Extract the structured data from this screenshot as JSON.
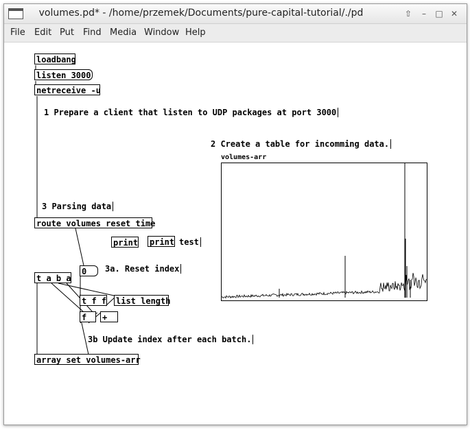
{
  "window": {
    "title": "volumes.pd* - /home/przemek/Documents/pure-capital-tutorial/./pd"
  },
  "menu": [
    "File",
    "Edit",
    "Put",
    "Find",
    "Media",
    "Window",
    "Help"
  ],
  "objects": {
    "loadbang": "loadbang",
    "listen": "listen 3000",
    "netreceive": "netreceive -u",
    "route": "route volumes reset time",
    "print1": "print",
    "print2": "print",
    "zero_msg": "0",
    "taba": "t a b a",
    "tff": "t f f",
    "list_length": "list length",
    "f": "f",
    "plus": "+",
    "array_set": "array set volumes-arr"
  },
  "comments": {
    "c1": "1 Prepare a client that listen to UDP packages at port 3000",
    "c2": "2 Create a table for incomming data.",
    "c3": "3 Parsing data",
    "test": "test",
    "c3a": "3a. Reset index",
    "c3b": "3b Update index after each batch."
  },
  "array": {
    "name": "volumes-arr"
  }
}
